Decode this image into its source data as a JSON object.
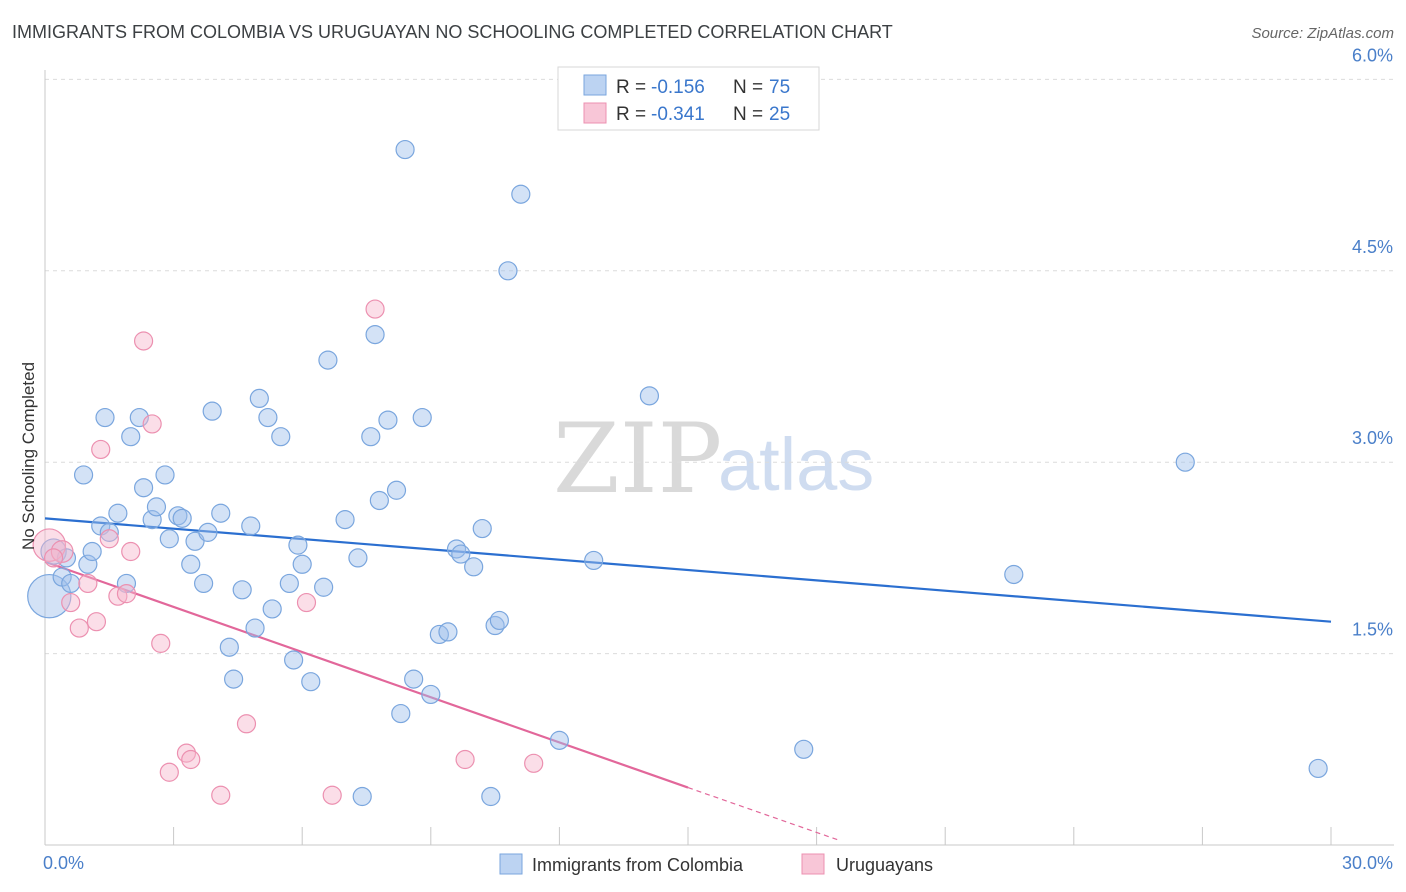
{
  "chart_data": {
    "type": "scatter",
    "title": "IMMIGRANTS FROM COLOMBIA VS URUGUAYAN NO SCHOOLING COMPLETED CORRELATION CHART",
    "source": "Source: ZipAtlas.com",
    "ylabel": "No Schooling Completed",
    "xlabel": "",
    "xlim": [
      0,
      30
    ],
    "ylim": [
      0,
      6.3
    ],
    "x_tick_labels": [
      "0.0%",
      "30.0%"
    ],
    "y_ticks": [
      1.5,
      3.0,
      4.5,
      6.0
    ],
    "y_tick_labels": [
      "1.5%",
      "3.0%",
      "4.5%",
      "6.0%"
    ],
    "watermark": {
      "part1": "ZIP",
      "part2": "atlas"
    },
    "legend": {
      "r_label": "R =",
      "n_label": "N =",
      "entries": [
        {
          "r": "-0.156",
          "n": "75"
        },
        {
          "r": "-0.341",
          "n": "25"
        }
      ]
    },
    "series": [
      {
        "name": "Immigrants from Colombia",
        "color": "#9dbfea",
        "stroke": "#7aa6de",
        "line_color": "#2b6fd0",
        "trend": {
          "x1": 0,
          "y1": 2.56,
          "x2": 30,
          "y2": 1.75
        },
        "points": [
          [
            0.1,
            1.95,
            2.4
          ],
          [
            0.2,
            2.3,
            1.4
          ],
          [
            0.4,
            2.1,
            1
          ],
          [
            0.6,
            2.05,
            1
          ],
          [
            1.0,
            2.2,
            1
          ],
          [
            1.1,
            2.3,
            1
          ],
          [
            0.9,
            2.9,
            1
          ],
          [
            1.3,
            2.5,
            1
          ],
          [
            1.4,
            3.35,
            1
          ],
          [
            1.5,
            2.45,
            1
          ],
          [
            1.7,
            2.6,
            1
          ],
          [
            1.9,
            2.05,
            1
          ],
          [
            2.0,
            3.2,
            1
          ],
          [
            2.2,
            3.35,
            1
          ],
          [
            2.3,
            2.8,
            1
          ],
          [
            2.5,
            2.55,
            1
          ],
          [
            2.6,
            2.65,
            1
          ],
          [
            2.8,
            2.9,
            1
          ],
          [
            2.9,
            2.4,
            1
          ],
          [
            3.1,
            2.58,
            1
          ],
          [
            3.2,
            2.56,
            1
          ],
          [
            3.4,
            2.2,
            1
          ],
          [
            3.5,
            2.38,
            1
          ],
          [
            3.7,
            2.05,
            1
          ],
          [
            3.8,
            2.45,
            1
          ],
          [
            3.9,
            3.4,
            1
          ],
          [
            4.1,
            2.6,
            1
          ],
          [
            4.3,
            1.55,
            1
          ],
          [
            4.4,
            1.3,
            1
          ],
          [
            4.6,
            2.0,
            1
          ],
          [
            4.8,
            2.5,
            1
          ],
          [
            4.9,
            1.7,
            1
          ],
          [
            5.0,
            3.5,
            1
          ],
          [
            5.2,
            3.35,
            1
          ],
          [
            5.3,
            1.85,
            1
          ],
          [
            5.5,
            3.2,
            1
          ],
          [
            5.7,
            2.05,
            1
          ],
          [
            5.8,
            1.45,
            1
          ],
          [
            5.9,
            2.35,
            1
          ],
          [
            6.0,
            2.2,
            1
          ],
          [
            6.2,
            1.28,
            1
          ],
          [
            6.5,
            2.02,
            1
          ],
          [
            6.6,
            3.8,
            1
          ],
          [
            7.0,
            2.55,
            1
          ],
          [
            7.3,
            2.25,
            1
          ],
          [
            7.4,
            0.38,
            1
          ],
          [
            7.6,
            3.2,
            1
          ],
          [
            7.7,
            4.0,
            1
          ],
          [
            7.8,
            2.7,
            1
          ],
          [
            8.0,
            3.33,
            1
          ],
          [
            8.2,
            2.78,
            1
          ],
          [
            8.3,
            1.03,
            1
          ],
          [
            8.4,
            5.45,
            1
          ],
          [
            8.6,
            1.3,
            1
          ],
          [
            8.8,
            3.35,
            1
          ],
          [
            9.0,
            1.18,
            1
          ],
          [
            9.2,
            1.65,
            1
          ],
          [
            9.4,
            1.67,
            1
          ],
          [
            9.6,
            2.32,
            1
          ],
          [
            9.7,
            2.28,
            1
          ],
          [
            10.0,
            2.18,
            1
          ],
          [
            10.2,
            2.48,
            1
          ],
          [
            10.4,
            0.38,
            1
          ],
          [
            10.5,
            1.72,
            1
          ],
          [
            10.6,
            1.76,
            1
          ],
          [
            10.8,
            4.5,
            1
          ],
          [
            11.1,
            5.1,
            1
          ],
          [
            12.0,
            0.82,
            1
          ],
          [
            12.8,
            2.23,
            1
          ],
          [
            14.1,
            3.52,
            1
          ],
          [
            17.7,
            0.75,
            1
          ],
          [
            22.6,
            2.12,
            1
          ],
          [
            26.6,
            3.0,
            1
          ],
          [
            29.7,
            0.6,
            1
          ],
          [
            0.5,
            2.25,
            1
          ]
        ]
      },
      {
        "name": "Uruguayans",
        "color": "#f6b6cd",
        "stroke": "#ec90b0",
        "line_color": "#e2679a",
        "trend": {
          "x1": 0,
          "y1": 2.22,
          "x2": 15,
          "y2": 0.45
        },
        "trend_dash_to": {
          "x": 18.5,
          "y": 0.04
        },
        "points": [
          [
            0.1,
            2.35,
            1.8
          ],
          [
            0.4,
            2.3,
            1.2
          ],
          [
            0.6,
            1.9,
            1
          ],
          [
            0.8,
            1.7,
            1
          ],
          [
            1.0,
            2.05,
            1
          ],
          [
            1.2,
            1.75,
            1
          ],
          [
            1.3,
            3.1,
            1
          ],
          [
            1.5,
            2.4,
            1
          ],
          [
            1.7,
            1.95,
            1
          ],
          [
            1.9,
            1.97,
            1
          ],
          [
            2.0,
            2.3,
            1
          ],
          [
            2.3,
            3.95,
            1
          ],
          [
            2.5,
            3.3,
            1
          ],
          [
            2.7,
            1.58,
            1
          ],
          [
            2.9,
            0.57,
            1
          ],
          [
            3.3,
            0.72,
            1
          ],
          [
            3.4,
            0.67,
            1
          ],
          [
            4.1,
            0.39,
            1
          ],
          [
            4.7,
            0.95,
            1
          ],
          [
            6.1,
            1.9,
            1
          ],
          [
            6.7,
            0.39,
            1
          ],
          [
            7.7,
            4.2,
            1
          ],
          [
            9.8,
            0.67,
            1
          ],
          [
            11.4,
            0.64,
            1
          ],
          [
            0.2,
            2.25,
            1
          ]
        ]
      }
    ]
  }
}
